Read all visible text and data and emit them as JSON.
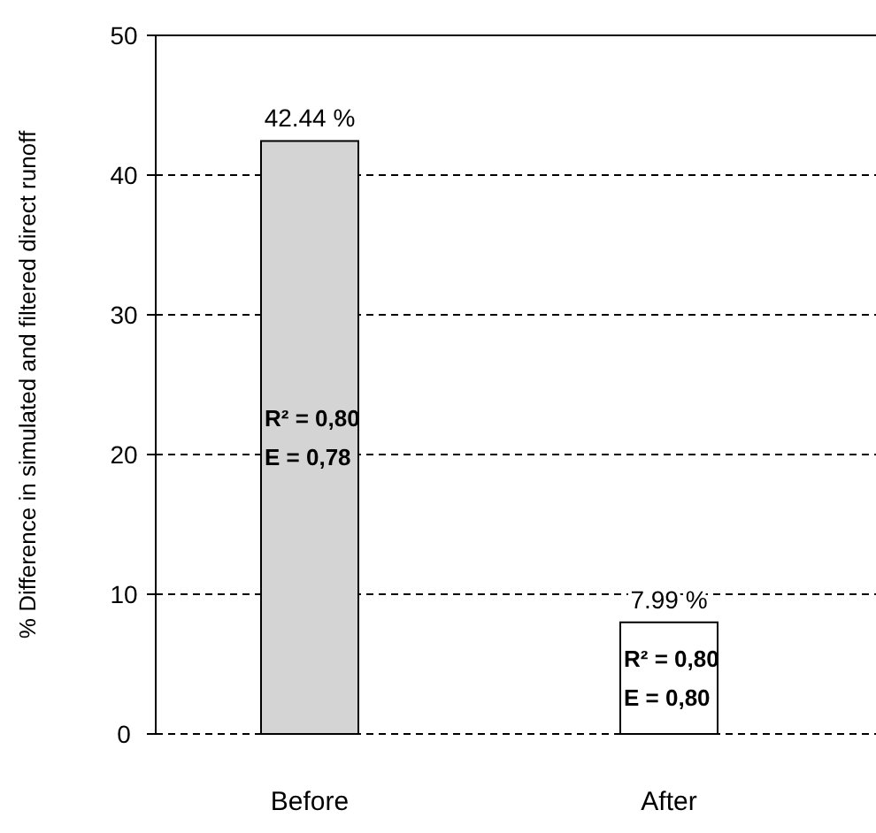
{
  "chart_data": {
    "type": "bar",
    "ylabel": "% Difference in simulated and filtered direct runoff",
    "categories": [
      "Before",
      "After"
    ],
    "values": [
      42.44,
      7.99
    ],
    "colors": [
      "#d4d4d4",
      "#ffffff"
    ],
    "value_labels": [
      "42.44 %",
      "7.99 %"
    ],
    "ylim": [
      0,
      50
    ],
    "yticks": [
      0,
      10,
      20,
      30,
      40,
      50
    ],
    "grid": "y",
    "line_style": "dashed",
    "annotations": [
      "R² = 0,80",
      "E = 0,78",
      "R² = 0,80",
      "E = 0,80"
    ]
  }
}
